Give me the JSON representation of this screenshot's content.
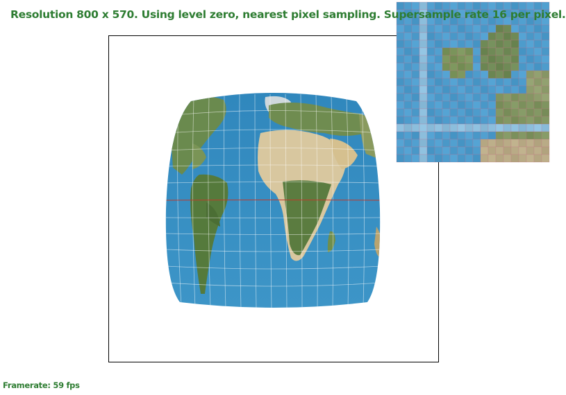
{
  "status": {
    "text": "Resolution 800 x 570. Using level zero, nearest pixel sampling. Supersample rate 16 per pixel."
  },
  "framerate": {
    "text": "Framerate: 59 fps"
  },
  "colors": {
    "status_text": "#2e7d32",
    "ocean": "#3a8ec0",
    "land_green": "#5d7c45",
    "land_desert": "#d8c7a0",
    "grid_line": "#ffffff",
    "equator": "#c0392b",
    "frame_border": "#000000"
  },
  "canvas": {
    "content": "world-map-texture"
  },
  "zoom_inset": {
    "content": "magnified-texture-pixels"
  }
}
